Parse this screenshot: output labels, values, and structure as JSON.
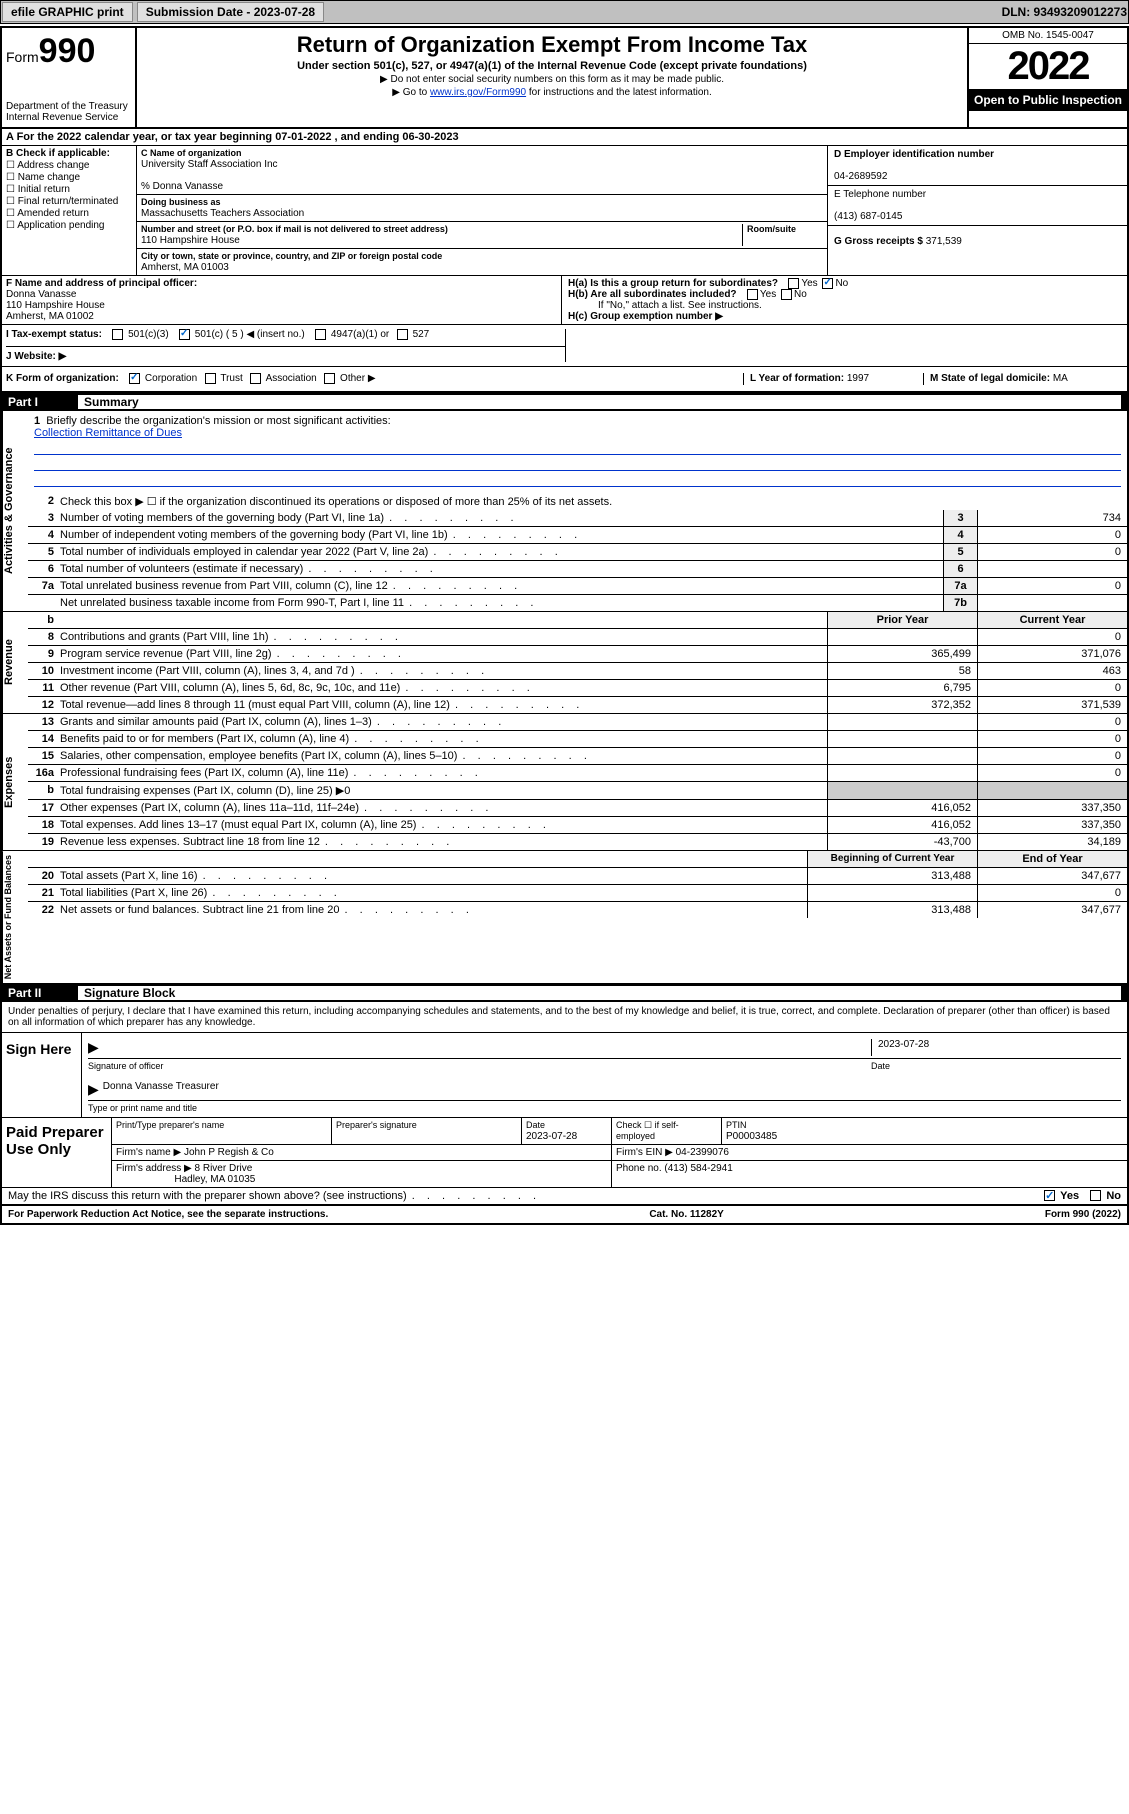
{
  "topbar": {
    "efile": "efile GRAPHIC print",
    "subdate_lbl": "Submission Date - 2023-07-28",
    "dln": "DLN: 93493209012273"
  },
  "header": {
    "form_prefix": "Form",
    "form_num": "990",
    "dept": "Department of the Treasury\nInternal Revenue Service",
    "title": "Return of Organization Exempt From Income Tax",
    "sub": "Under section 501(c), 527, or 4947(a)(1) of the Internal Revenue Code (except private foundations)",
    "note1": "▶ Do not enter social security numbers on this form as it may be made public.",
    "note2_pre": "▶ Go to ",
    "note2_link": "www.irs.gov/Form990",
    "note2_post": " for instructions and the latest information.",
    "omb": "OMB No. 1545-0047",
    "year": "2022",
    "inspect": "Open to Public Inspection"
  },
  "rowA": "A For the 2022 calendar year, or tax year beginning 07-01-2022    , and ending 06-30-2023",
  "colB": {
    "lbl": "B Check if applicable:",
    "opts": [
      "Address change",
      "Name change",
      "Initial return",
      "Final return/terminated",
      "Amended return",
      "Application pending"
    ]
  },
  "colC": {
    "name_lbl": "C Name of organization",
    "name": "University Staff Association Inc",
    "care_lbl": "% Donna Vanasse",
    "dba_lbl": "Doing business as",
    "dba": "Massachusetts Teachers Association",
    "addr_lbl": "Number and street (or P.O. box if mail is not delivered to street address)",
    "room_lbl": "Room/suite",
    "addr": "110 Hampshire House",
    "city_lbl": "City or town, state or province, country, and ZIP or foreign postal code",
    "city": "Amherst, MA  01003"
  },
  "colR": {
    "d_lbl": "D Employer identification number",
    "d_val": "04-2689592",
    "e_lbl": "E Telephone number",
    "e_val": "(413) 687-0145",
    "g_lbl": "G Gross receipts $ ",
    "g_val": "371,539"
  },
  "rowF": {
    "f_lbl": "F Name and address of principal officer:",
    "f_name": "Donna Vanasse",
    "f_addr1": "110 Hampshire House",
    "f_addr2": "Amherst, MA  01002",
    "ha": "H(a)  Is this a group return for subordinates?",
    "hb": "H(b)  Are all subordinates included?",
    "hb_note": "If \"No,\" attach a list. See instructions.",
    "hc": "H(c)  Group exemption number ▶"
  },
  "rowI": {
    "i_lbl": "I   Tax-exempt status:",
    "i_501c3": "501(c)(3)",
    "i_501c": "501(c) ( 5 ) ◀ (insert no.)",
    "i_4947": "4947(a)(1) or",
    "i_527": "527"
  },
  "rowJ": "J   Website: ▶",
  "rowK": {
    "k_lbl": "K Form of organization:",
    "k_opts": [
      "Corporation",
      "Trust",
      "Association",
      "Other ▶"
    ],
    "l_lbl": "L Year of formation: ",
    "l_val": "1997",
    "m_lbl": "M State of legal domicile: ",
    "m_val": "MA"
  },
  "part1": {
    "hdr": "Part I",
    "title": "Summary",
    "q1": "Briefly describe the organization's mission or most significant activities:",
    "mission": "Collection Remittance of Dues",
    "q2": "Check this box ▶ ☐  if the organization discontinued its operations or disposed of more than 25% of its net assets.",
    "lines_gov": [
      {
        "n": "3",
        "t": "Number of voting members of the governing body (Part VI, line 1a)",
        "c": "3",
        "v": "734"
      },
      {
        "n": "4",
        "t": "Number of independent voting members of the governing body (Part VI, line 1b)",
        "c": "4",
        "v": "0"
      },
      {
        "n": "5",
        "t": "Total number of individuals employed in calendar year 2022 (Part V, line 2a)",
        "c": "5",
        "v": "0"
      },
      {
        "n": "6",
        "t": "Total number of volunteers (estimate if necessary)",
        "c": "6",
        "v": ""
      },
      {
        "n": "7a",
        "t": "Total unrelated business revenue from Part VIII, column (C), line 12",
        "c": "7a",
        "v": "0"
      },
      {
        "n": "",
        "t": "Net unrelated business taxable income from Form 990-T, Part I, line 11",
        "c": "7b",
        "v": ""
      }
    ],
    "col_hdr": {
      "n": "b",
      "prior": "Prior Year",
      "curr": "Current Year"
    },
    "lines_rev": [
      {
        "n": "8",
        "t": "Contributions and grants (Part VIII, line 1h)",
        "p": "",
        "c": "0"
      },
      {
        "n": "9",
        "t": "Program service revenue (Part VIII, line 2g)",
        "p": "365,499",
        "c": "371,076"
      },
      {
        "n": "10",
        "t": "Investment income (Part VIII, column (A), lines 3, 4, and 7d )",
        "p": "58",
        "c": "463"
      },
      {
        "n": "11",
        "t": "Other revenue (Part VIII, column (A), lines 5, 6d, 8c, 9c, 10c, and 11e)",
        "p": "6,795",
        "c": "0"
      },
      {
        "n": "12",
        "t": "Total revenue—add lines 8 through 11 (must equal Part VIII, column (A), line 12)",
        "p": "372,352",
        "c": "371,539"
      }
    ],
    "lines_exp": [
      {
        "n": "13",
        "t": "Grants and similar amounts paid (Part IX, column (A), lines 1–3)",
        "p": "",
        "c": "0"
      },
      {
        "n": "14",
        "t": "Benefits paid to or for members (Part IX, column (A), line 4)",
        "p": "",
        "c": "0"
      },
      {
        "n": "15",
        "t": "Salaries, other compensation, employee benefits (Part IX, column (A), lines 5–10)",
        "p": "",
        "c": "0"
      },
      {
        "n": "16a",
        "t": "Professional fundraising fees (Part IX, column (A), line 11e)",
        "p": "",
        "c": "0"
      },
      {
        "n": "b",
        "t": "Total fundraising expenses (Part IX, column (D), line 25) ▶0",
        "p": "—",
        "c": "—"
      },
      {
        "n": "17",
        "t": "Other expenses (Part IX, column (A), lines 11a–11d, 11f–24e)",
        "p": "416,052",
        "c": "337,350"
      },
      {
        "n": "18",
        "t": "Total expenses. Add lines 13–17 (must equal Part IX, column (A), line 25)",
        "p": "416,052",
        "c": "337,350"
      },
      {
        "n": "19",
        "t": "Revenue less expenses. Subtract line 18 from line 12",
        "p": "-43,700",
        "c": "34,189"
      }
    ],
    "na_hdr": {
      "prior": "Beginning of Current Year",
      "curr": "End of Year"
    },
    "lines_na": [
      {
        "n": "20",
        "t": "Total assets (Part X, line 16)",
        "p": "313,488",
        "c": "347,677"
      },
      {
        "n": "21",
        "t": "Total liabilities (Part X, line 26)",
        "p": "",
        "c": "0"
      },
      {
        "n": "22",
        "t": "Net assets or fund balances. Subtract line 21 from line 20",
        "p": "313,488",
        "c": "347,677"
      }
    ]
  },
  "part2": {
    "hdr": "Part II",
    "title": "Signature Block",
    "decl": "Under penalties of perjury, I declare that I have examined this return, including accompanying schedules and statements, and to the best of my knowledge and belief, it is true, correct, and complete. Declaration of preparer (other than officer) is based on all information of which preparer has any knowledge.",
    "sign_here": "Sign Here",
    "sig_officer": "Signature of officer",
    "sig_date_lbl": "Date",
    "sig_date": "2023-07-28",
    "sig_name": "Donna Vanasse Treasurer",
    "sig_name_lbl": "Type or print name and title",
    "paid": "Paid Preparer Use Only",
    "pp_name_lbl": "Print/Type preparer's name",
    "pp_sig_lbl": "Preparer's signature",
    "pp_date_lbl": "Date",
    "pp_date": "2023-07-28",
    "pp_self": "Check ☐ if self-employed",
    "pp_ptin_lbl": "PTIN",
    "pp_ptin": "P00003485",
    "firm_lbl": "Firm's name    ▶ ",
    "firm": "John P Regish & Co",
    "firm_ein_lbl": "Firm's EIN ▶ ",
    "firm_ein": "04-2399076",
    "firm_addr_lbl": "Firm's address ▶ ",
    "firm_addr1": "8 River Drive",
    "firm_addr2": "Hadley, MA  01035",
    "firm_ph_lbl": "Phone no. ",
    "firm_ph": "(413) 584-2941",
    "may": "May the IRS discuss this return with the preparer shown above? (see instructions)",
    "yes": "Yes",
    "no": "No"
  },
  "footer": {
    "pra": "For Paperwork Reduction Act Notice, see the separate instructions.",
    "cat": "Cat. No. 11282Y",
    "form": "Form 990 (2022)"
  }
}
